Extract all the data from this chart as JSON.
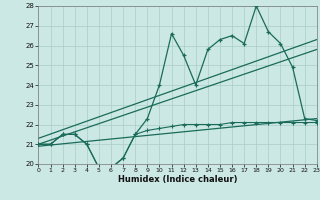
{
  "xlabel": "Humidex (Indice chaleur)",
  "bg_color": "#cce8e4",
  "grid_color": "#aaccc8",
  "line_color": "#1a6b5a",
  "xlim": [
    0,
    23
  ],
  "ylim": [
    20,
    28
  ],
  "xticks": [
    0,
    1,
    2,
    3,
    4,
    5,
    6,
    7,
    8,
    9,
    10,
    11,
    12,
    13,
    14,
    15,
    16,
    17,
    18,
    19,
    20,
    21,
    22,
    23
  ],
  "yticks": [
    20,
    21,
    22,
    23,
    24,
    25,
    26,
    27,
    28
  ],
  "main_line_x": [
    0,
    1,
    2,
    3,
    4,
    5,
    6,
    7,
    8,
    9,
    10,
    11,
    12,
    13,
    14,
    15,
    16,
    17,
    18,
    19,
    20,
    21,
    22,
    23
  ],
  "main_line_y": [
    21.0,
    21.0,
    21.5,
    21.5,
    21.0,
    19.8,
    19.8,
    20.3,
    21.5,
    22.3,
    24.0,
    26.6,
    25.5,
    24.0,
    25.8,
    26.3,
    26.5,
    26.1,
    28.0,
    26.7,
    26.1,
    24.9,
    22.3,
    22.2
  ],
  "trend1_x": [
    0,
    23
  ],
  "trend1_y": [
    21.3,
    26.3
  ],
  "trend2_x": [
    0,
    23
  ],
  "trend2_y": [
    21.0,
    25.8
  ],
  "trend3_x": [
    0,
    23
  ],
  "trend3_y": [
    20.9,
    22.3
  ],
  "bottom_line_x": [
    0,
    1,
    2,
    3,
    4,
    5,
    6,
    7,
    8,
    9,
    10,
    11,
    12,
    13,
    14,
    15,
    16,
    17,
    18,
    19,
    20,
    21,
    22,
    23
  ],
  "bottom_line_y": [
    21.0,
    21.0,
    21.5,
    21.5,
    21.0,
    19.8,
    19.8,
    20.3,
    21.5,
    21.7,
    21.8,
    21.9,
    22.0,
    22.0,
    22.0,
    22.0,
    22.1,
    22.1,
    22.1,
    22.1,
    22.1,
    22.1,
    22.1,
    22.1
  ]
}
